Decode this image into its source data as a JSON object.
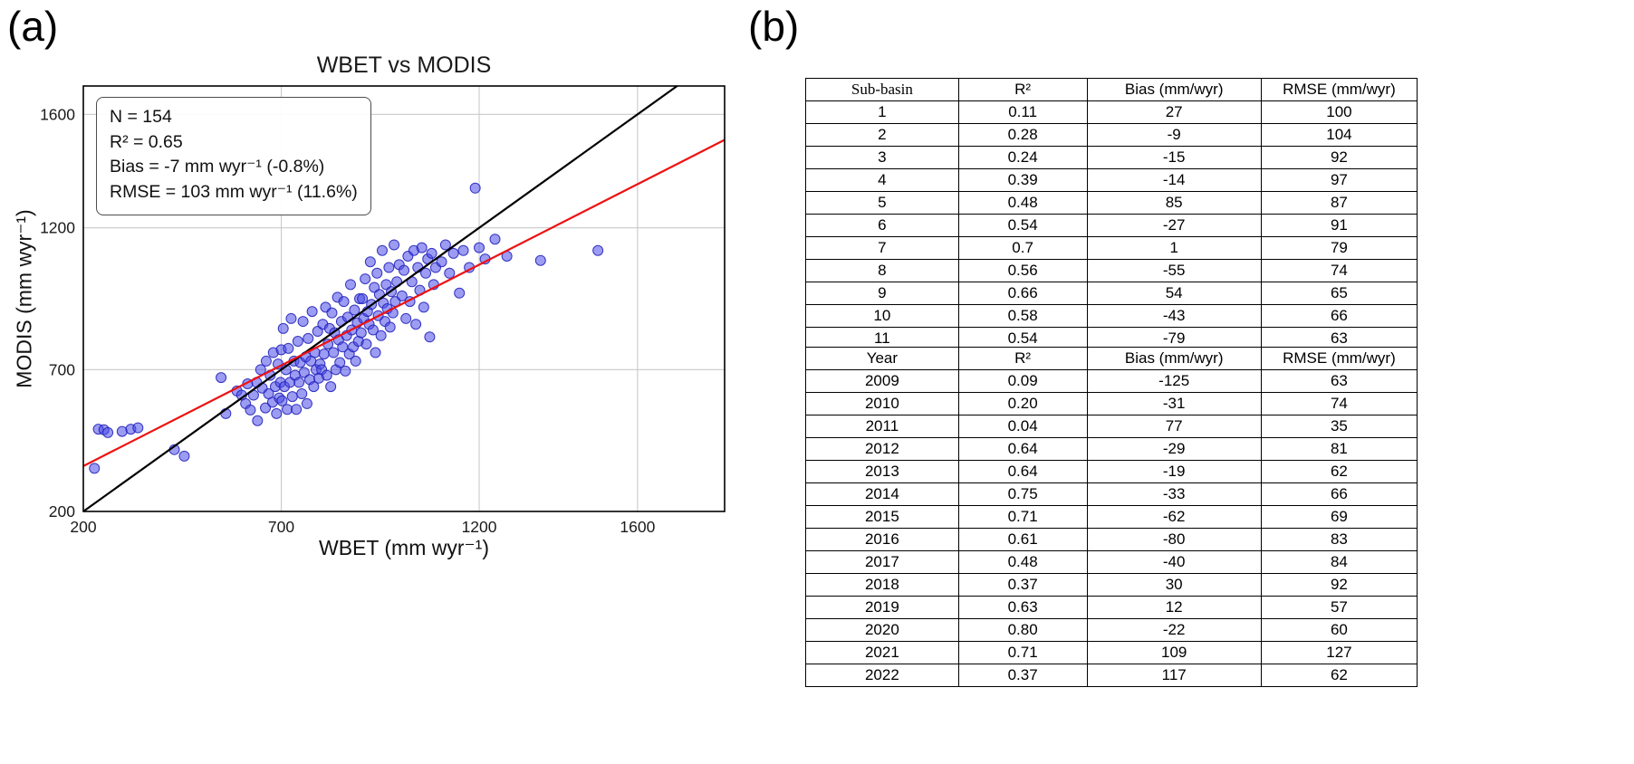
{
  "panel_a": {
    "label": "(a)"
  },
  "panel_b": {
    "label": "(b)"
  },
  "chart_data": [
    {
      "type": "scatter",
      "title": "WBET vs MODIS",
      "xlabel": "WBET (mm wyr⁻¹)",
      "ylabel": "MODIS (mm wyr⁻¹)",
      "xlim": [
        200,
        1820
      ],
      "ylim": [
        200,
        1700
      ],
      "xticks": [
        200,
        700,
        1200,
        1600
      ],
      "yticks": [
        200,
        700,
        1200,
        1600
      ],
      "grid": true,
      "annotation": [
        "N = 154",
        "R² = 0.65",
        "Bias = -7 mm wyr⁻¹ (-0.8%)",
        "RMSE = 103 mm wyr⁻¹ (11.6%)"
      ],
      "identity_line": {
        "x": [
          200,
          1700
        ],
        "y": [
          200,
          1700
        ]
      },
      "regression_line": {
        "x": [
          200,
          1820
        ],
        "y": [
          360,
          1510
        ]
      },
      "colors": {
        "point_fill": "#4a4ae8",
        "point_edge": "#2222bb",
        "identity_line": "#000000",
        "regression_line": "#ee1111",
        "grid": "#c9c9c9"
      },
      "points": [
        [
          228,
          352
        ],
        [
          238,
          490
        ],
        [
          252,
          488
        ],
        [
          262,
          478
        ],
        [
          298,
          482
        ],
        [
          320,
          490
        ],
        [
          338,
          495
        ],
        [
          430,
          418
        ],
        [
          455,
          395
        ],
        [
          548,
          672
        ],
        [
          560,
          545
        ],
        [
          588,
          625
        ],
        [
          600,
          610
        ],
        [
          610,
          580
        ],
        [
          615,
          650
        ],
        [
          622,
          558
        ],
        [
          630,
          610
        ],
        [
          638,
          655
        ],
        [
          640,
          520
        ],
        [
          648,
          700
        ],
        [
          652,
          635
        ],
        [
          660,
          565
        ],
        [
          662,
          730
        ],
        [
          668,
          615
        ],
        [
          672,
          680
        ],
        [
          678,
          585
        ],
        [
          680,
          760
        ],
        [
          685,
          640
        ],
        [
          688,
          545
        ],
        [
          692,
          720
        ],
        [
          695,
          600
        ],
        [
          698,
          655
        ],
        [
          700,
          770
        ],
        [
          702,
          590
        ],
        [
          705,
          845
        ],
        [
          708,
          640
        ],
        [
          712,
          700
        ],
        [
          715,
          560
        ],
        [
          718,
          775
        ],
        [
          722,
          655
        ],
        [
          725,
          880
        ],
        [
          728,
          605
        ],
        [
          732,
          730
        ],
        [
          735,
          680
        ],
        [
          738,
          560
        ],
        [
          742,
          800
        ],
        [
          745,
          655
        ],
        [
          748,
          725
        ],
        [
          752,
          615
        ],
        [
          755,
          870
        ],
        [
          758,
          690
        ],
        [
          762,
          745
        ],
        [
          765,
          580
        ],
        [
          768,
          810
        ],
        [
          772,
          665
        ],
        [
          775,
          730
        ],
        [
          778,
          905
        ],
        [
          782,
          640
        ],
        [
          785,
          760
        ],
        [
          788,
          700
        ],
        [
          792,
          835
        ],
        [
          795,
          670
        ],
        [
          798,
          720
        ],
        [
          802,
          700
        ],
        [
          805,
          860
        ],
        [
          808,
          755
        ],
        [
          812,
          920
        ],
        [
          815,
          680
        ],
        [
          818,
          790
        ],
        [
          822,
          845
        ],
        [
          825,
          640
        ],
        [
          828,
          900
        ],
        [
          832,
          760
        ],
        [
          835,
          830
        ],
        [
          838,
          700
        ],
        [
          842,
          955
        ],
        [
          845,
          805
        ],
        [
          848,
          725
        ],
        [
          852,
          870
        ],
        [
          855,
          780
        ],
        [
          858,
          940
        ],
        [
          862,
          695
        ],
        [
          865,
          820
        ],
        [
          868,
          885
        ],
        [
          872,
          755
        ],
        [
          875,
          1000
        ],
        [
          878,
          840
        ],
        [
          882,
          780
        ],
        [
          885,
          910
        ],
        [
          888,
          730
        ],
        [
          892,
          865
        ],
        [
          895,
          800
        ],
        [
          898,
          950
        ],
        [
          902,
          830
        ],
        [
          905,
          950
        ],
        [
          908,
          880
        ],
        [
          912,
          1020
        ],
        [
          915,
          790
        ],
        [
          918,
          905
        ],
        [
          922,
          860
        ],
        [
          925,
          1080
        ],
        [
          928,
          930
        ],
        [
          932,
          840
        ],
        [
          935,
          990
        ],
        [
          938,
          760
        ],
        [
          942,
          1040
        ],
        [
          945,
          890
        ],
        [
          948,
          965
        ],
        [
          952,
          820
        ],
        [
          955,
          1120
        ],
        [
          958,
          935
        ],
        [
          962,
          870
        ],
        [
          965,
          1000
        ],
        [
          968,
          915
        ],
        [
          972,
          1060
        ],
        [
          975,
          850
        ],
        [
          978,
          975
        ],
        [
          982,
          900
        ],
        [
          985,
          1140
        ],
        [
          988,
          940
        ],
        [
          992,
          1010
        ],
        [
          998,
          1070
        ],
        [
          1005,
          960
        ],
        [
          1010,
          1050
        ],
        [
          1015,
          880
        ],
        [
          1020,
          1100
        ],
        [
          1025,
          940
        ],
        [
          1030,
          1010
        ],
        [
          1035,
          1120
        ],
        [
          1040,
          860
        ],
        [
          1045,
          1060
        ],
        [
          1050,
          980
        ],
        [
          1055,
          1130
        ],
        [
          1060,
          920
        ],
        [
          1065,
          1040
        ],
        [
          1070,
          1090
        ],
        [
          1075,
          815
        ],
        [
          1080,
          1110
        ],
        [
          1085,
          1000
        ],
        [
          1090,
          1060
        ],
        [
          1105,
          1080
        ],
        [
          1115,
          1140
        ],
        [
          1125,
          1040
        ],
        [
          1135,
          1110
        ],
        [
          1150,
          970
        ],
        [
          1160,
          1120
        ],
        [
          1175,
          1060
        ],
        [
          1190,
          1340
        ],
        [
          1200,
          1130
        ],
        [
          1215,
          1090
        ],
        [
          1240,
          1160
        ],
        [
          1270,
          1100
        ],
        [
          1355,
          1085
        ],
        [
          1500,
          1120
        ]
      ]
    },
    {
      "type": "table",
      "name": "per-subbasin-stats",
      "headers": [
        "Sub-basin",
        "R²",
        "Bias (mm/wyr)",
        "RMSE (mm/wyr)"
      ],
      "rows": [
        [
          "1",
          "0.11",
          "27",
          "100"
        ],
        [
          "2",
          "0.28",
          "-9",
          "104"
        ],
        [
          "3",
          "0.24",
          "-15",
          "92"
        ],
        [
          "4",
          "0.39",
          "-14",
          "97"
        ],
        [
          "5",
          "0.48",
          "85",
          "87"
        ],
        [
          "6",
          "0.54",
          "-27",
          "91"
        ],
        [
          "7",
          "0.7",
          "1",
          "79"
        ],
        [
          "8",
          "0.56",
          "-55",
          "74"
        ],
        [
          "9",
          "0.66",
          "54",
          "65"
        ],
        [
          "10",
          "0.58",
          "-43",
          "66"
        ],
        [
          "11",
          "0.54",
          "-79",
          "63"
        ]
      ]
    },
    {
      "type": "table",
      "name": "per-year-stats",
      "headers": [
        "Year",
        "R²",
        "Bias (mm/wyr)",
        "RMSE (mm/wyr)"
      ],
      "rows": [
        [
          "2009",
          "0.09",
          "-125",
          "63"
        ],
        [
          "2010",
          "0.20",
          "-31",
          "74"
        ],
        [
          "2011",
          "0.04",
          "77",
          "35"
        ],
        [
          "2012",
          "0.64",
          "-29",
          "81"
        ],
        [
          "2013",
          "0.64",
          "-19",
          "62"
        ],
        [
          "2014",
          "0.75",
          "-33",
          "66"
        ],
        [
          "2015",
          "0.71",
          "-62",
          "69"
        ],
        [
          "2016",
          "0.61",
          "-80",
          "83"
        ],
        [
          "2017",
          "0.48",
          "-40",
          "84"
        ],
        [
          "2018",
          "0.37",
          "30",
          "92"
        ],
        [
          "2019",
          "0.63",
          "12",
          "57"
        ],
        [
          "2020",
          "0.80",
          "-22",
          "60"
        ],
        [
          "2021",
          "0.71",
          "109",
          "127"
        ],
        [
          "2022",
          "0.37",
          "117",
          "62"
        ]
      ]
    }
  ]
}
